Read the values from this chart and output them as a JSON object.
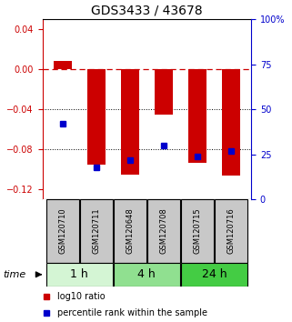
{
  "title": "GDS3433 / 43678",
  "samples": [
    "GSM120710",
    "GSM120711",
    "GSM120648",
    "GSM120708",
    "GSM120715",
    "GSM120716"
  ],
  "log10_ratio": [
    0.008,
    -0.095,
    -0.105,
    -0.045,
    -0.093,
    -0.106
  ],
  "percentile_rank": [
    42,
    18,
    22,
    30,
    24,
    27
  ],
  "ylim_left": [
    -0.13,
    0.05
  ],
  "ylim_right": [
    0,
    100
  ],
  "yticks_left": [
    0.04,
    0,
    -0.04,
    -0.08,
    -0.12
  ],
  "yticks_right": [
    100,
    75,
    50,
    25,
    0
  ],
  "groups": [
    {
      "label": "1 h",
      "indices": [
        0,
        1
      ],
      "color": "#d4f5d4"
    },
    {
      "label": "4 h",
      "indices": [
        2,
        3
      ],
      "color": "#90e090"
    },
    {
      "label": "24 h",
      "indices": [
        4,
        5
      ],
      "color": "#44cc44"
    }
  ],
  "bar_color": "#cc0000",
  "percentile_color": "#0000cc",
  "bar_width": 0.55,
  "sample_box_color": "#c8c8c8",
  "time_label": "time",
  "legend_bar_label": "log10 ratio",
  "legend_pct_label": "percentile rank within the sample",
  "title_fontsize": 10,
  "tick_fontsize": 7,
  "sample_fontsize": 6,
  "group_fontsize": 9,
  "time_fontsize": 8
}
